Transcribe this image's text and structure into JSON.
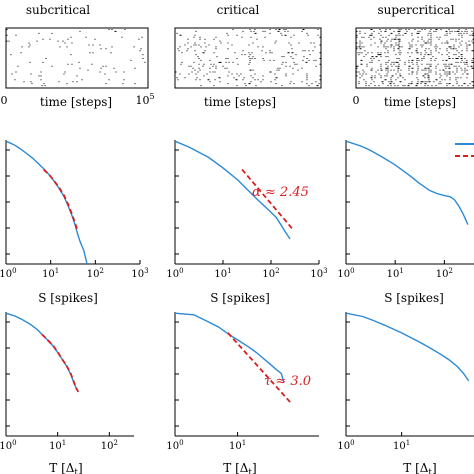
{
  "raster_titles": [
    "subcritical",
    "critical",
    "supercritical"
  ],
  "raster_time_label": "time [steps]",
  "raster_x_start": "0",
  "raster_x_end_base": "10",
  "raster_x_end_exp": "5",
  "size_xlabel": "S [spikes]",
  "duration_xlabel": "T [Δ",
  "duration_xlabel_sub": "t",
  "duration_xlabel_close": "]",
  "alpha_annotation": "α ≈ 2.45",
  "tau_annotation": "τ ≈ 3.0",
  "tick_base": "10",
  "colors": {
    "data": "#2b8ad6",
    "fit": "#d62020",
    "raster": "#000000"
  },
  "chart_data": [
    {
      "type": "line",
      "panel": "size-subcritical",
      "xlabel": "S [spikes]",
      "log_x": true,
      "xlim": [
        1,
        1000
      ],
      "x_ticks": [
        "10^0",
        "10^1",
        "10^2",
        "10^3"
      ],
      "series": [
        {
          "x": [
            1,
            1.5,
            2,
            3,
            4,
            5,
            7,
            10,
            15,
            20,
            25,
            30,
            35,
            40,
            45,
            50,
            55,
            60,
            65
          ],
          "y": [
            1,
            0.7,
            0.5,
            0.28,
            0.18,
            0.12,
            0.065,
            0.03,
            0.01,
            0.004,
            0.0015,
            0.0006,
            0.00025,
            0.0001,
            5e-05,
            3e-05,
            2e-05,
            1e-05,
            5e-06
          ]
        },
        {
          "x": [
            7,
            10,
            15,
            20,
            25,
            30,
            35,
            40
          ],
          "y": [
            0.06,
            0.03,
            0.011,
            0.0045,
            0.0018,
            0.0007,
            0.0003,
            0.00013
          ]
        }
      ]
    },
    {
      "type": "line",
      "panel": "size-critical",
      "xlabel": "S [spikes]",
      "log_x": true,
      "xlim": [
        1,
        1000
      ],
      "x_ticks": [
        "10^0",
        "10^1",
        "10^2",
        "10^3"
      ],
      "annotation": "α ≈ 2.45",
      "series": [
        {
          "x": [
            1,
            2,
            3,
            5,
            10,
            20,
            50,
            100,
            130,
            160,
            200,
            250
          ],
          "y": [
            1,
            0.55,
            0.35,
            0.2,
            0.07,
            0.022,
            0.0033,
            0.00085,
            0.0005,
            0.00025,
            0.00012,
            6e-05
          ]
        },
        {
          "x": [
            25,
            300
          ],
          "y": [
            0.06,
            0.000138
          ]
        }
      ]
    },
    {
      "type": "line",
      "panel": "size-supercritical",
      "xlabel": "S [spikes]",
      "log_x": true,
      "xlim": [
        1,
        400
      ],
      "x_ticks": [
        "10^0",
        "10^1",
        "10^2"
      ],
      "series": [
        {
          "x": [
            1,
            2,
            3,
            5,
            10,
            20,
            30,
            50,
            70,
            100,
            130,
            160,
            200,
            250,
            300
          ],
          "y": [
            1,
            0.62,
            0.42,
            0.23,
            0.095,
            0.032,
            0.016,
            0.0075,
            0.0055,
            0.0045,
            0.004,
            0.003,
            0.0015,
            0.0006,
            0.00025
          ]
        }
      ]
    },
    {
      "type": "line",
      "panel": "duration-subcritical",
      "xlabel": "T [Δt]",
      "log_x": true,
      "xlim": [
        1,
        300
      ],
      "x_ticks": [
        "10^0",
        "10^1",
        "10^2"
      ],
      "series": [
        {
          "x": [
            1,
            1.5,
            2,
            3,
            4,
            5,
            6,
            8,
            10,
            12,
            15,
            18,
            20,
            22,
            25
          ],
          "y": [
            1,
            0.75,
            0.55,
            0.32,
            0.2,
            0.12,
            0.08,
            0.04,
            0.02,
            0.011,
            0.005,
            0.0022,
            0.0012,
            0.0007,
            0.0004
          ]
        },
        {
          "x": [
            5,
            8,
            10,
            12,
            15,
            18,
            20,
            22,
            25
          ],
          "y": [
            0.12,
            0.042,
            0.021,
            0.011,
            0.0052,
            0.0024,
            0.0013,
            0.0007,
            0.0004
          ]
        }
      ]
    },
    {
      "type": "line",
      "panel": "duration-critical",
      "xlabel": "T [Δt]",
      "log_x": true,
      "xlim": [
        1,
        200
      ],
      "x_ticks": [
        "10^0",
        "10^1"
      ],
      "annotation": "τ ≈ 3.0",
      "series": [
        {
          "x": [
            1,
            2,
            3,
            5,
            7,
            10,
            15,
            20,
            30,
            40,
            50,
            55
          ],
          "y": [
            1,
            0.85,
            0.5,
            0.25,
            0.13,
            0.07,
            0.035,
            0.02,
            0.008,
            0.004,
            0.0025,
            0.001
          ]
        },
        {
          "x": [
            7,
            70
          ],
          "y": [
            0.14,
            0.00014
          ]
        }
      ]
    },
    {
      "type": "line",
      "panel": "duration-supercritical",
      "xlabel": "T [Δt]",
      "log_x": true,
      "xlim": [
        1,
        200
      ],
      "x_ticks": [
        "10^0",
        "10^1"
      ],
      "series": [
        {
          "x": [
            1,
            2,
            3,
            5,
            10,
            20,
            30,
            50,
            70,
            100,
            130,
            160
          ],
          "y": [
            1,
            0.72,
            0.5,
            0.3,
            0.14,
            0.06,
            0.035,
            0.017,
            0.01,
            0.005,
            0.0025,
            0.0012
          ]
        }
      ]
    }
  ]
}
